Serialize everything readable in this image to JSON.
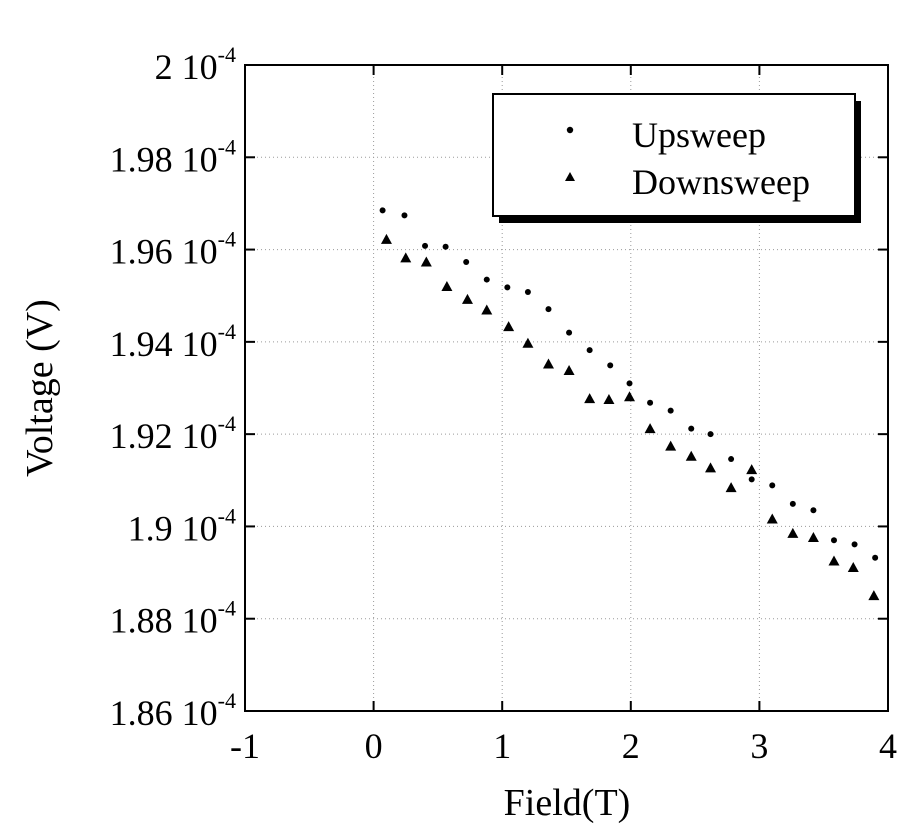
{
  "chart_data": {
    "type": "scatter",
    "xlabel": "Field(T)",
    "ylabel": "Voltage (V)",
    "xlim": [
      -1,
      4
    ],
    "ylim": [
      0.000186,
      0.0002
    ],
    "x_ticks": [
      -1,
      0,
      1,
      2,
      3,
      4
    ],
    "y_ticks": [
      {
        "value": 0.000186,
        "mantissa": "1.86 10",
        "exponent": "-4"
      },
      {
        "value": 0.000188,
        "mantissa": "1.88 10",
        "exponent": "-4"
      },
      {
        "value": 0.00019,
        "mantissa": "1.9 10",
        "exponent": "-4"
      },
      {
        "value": 0.000192,
        "mantissa": "1.92 10",
        "exponent": "-4"
      },
      {
        "value": 0.000194,
        "mantissa": "1.94 10",
        "exponent": "-4"
      },
      {
        "value": 0.000196,
        "mantissa": "1.96 10",
        "exponent": "-4"
      },
      {
        "value": 0.000198,
        "mantissa": "1.98 10",
        "exponent": "-4"
      },
      {
        "value": 0.0002,
        "mantissa": "2 10",
        "exponent": "-4"
      }
    ],
    "grid": true,
    "legend_position": "top-right",
    "series": [
      {
        "name": "Upsweep",
        "marker": "dot",
        "points": [
          [
            0.07,
            0.00019685
          ],
          [
            0.24,
            0.00019674
          ],
          [
            0.4,
            0.00019608
          ],
          [
            0.56,
            0.00019606
          ],
          [
            0.72,
            0.00019573
          ],
          [
            0.88,
            0.00019535
          ],
          [
            1.04,
            0.00019518
          ],
          [
            1.2,
            0.00019508
          ],
          [
            1.36,
            0.00019471
          ],
          [
            1.52,
            0.0001942
          ],
          [
            1.68,
            0.00019382
          ],
          [
            1.84,
            0.00019349
          ],
          [
            1.99,
            0.0001931
          ],
          [
            2.15,
            0.00019268
          ],
          [
            2.31,
            0.00019251
          ],
          [
            2.47,
            0.00019212
          ],
          [
            2.62,
            0.000192
          ],
          [
            2.78,
            0.00019146
          ],
          [
            2.94,
            0.00019102
          ],
          [
            3.1,
            0.00019089
          ],
          [
            3.26,
            0.00019049
          ],
          [
            3.42,
            0.00019035
          ],
          [
            3.58,
            0.0001897
          ],
          [
            3.74,
            0.00018961
          ],
          [
            3.9,
            0.00018932
          ]
        ]
      },
      {
        "name": "Downsweep",
        "marker": "triangle",
        "points": [
          [
            0.1,
            0.00019622
          ],
          [
            0.25,
            0.00019582
          ],
          [
            0.41,
            0.00019573
          ],
          [
            0.57,
            0.0001952
          ],
          [
            0.73,
            0.00019492
          ],
          [
            0.88,
            0.00019469
          ],
          [
            1.05,
            0.00019433
          ],
          [
            1.2,
            0.00019397
          ],
          [
            1.36,
            0.00019352
          ],
          [
            1.52,
            0.00019338
          ],
          [
            1.68,
            0.00019277
          ],
          [
            1.83,
            0.00019275
          ],
          [
            1.99,
            0.00019281
          ],
          [
            2.15,
            0.00019212
          ],
          [
            2.31,
            0.00019174
          ],
          [
            2.47,
            0.00019152
          ],
          [
            2.62,
            0.00019127
          ],
          [
            2.78,
            0.00019084
          ],
          [
            2.94,
            0.00019123
          ],
          [
            3.1,
            0.00019016
          ],
          [
            3.26,
            0.00018985
          ],
          [
            3.42,
            0.00018976
          ],
          [
            3.58,
            0.00018925
          ],
          [
            3.73,
            0.00018911
          ],
          [
            3.89,
            0.0001885
          ]
        ]
      }
    ]
  }
}
